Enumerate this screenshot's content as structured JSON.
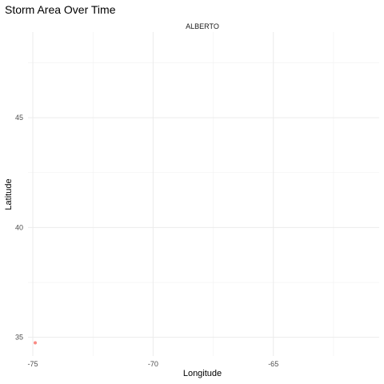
{
  "chart_data": {
    "type": "scatter",
    "title": "Storm Area Over Time",
    "facet_label": "ALBERTO",
    "xlabel": "Longitude",
    "ylabel": "Latitude",
    "xlim": [
      -75.2,
      -60.6
    ],
    "ylim": [
      34.15,
      48.9
    ],
    "x_ticks": [
      -75,
      -70,
      -65
    ],
    "x_tick_labels": [
      "-75",
      "-70",
      "-65"
    ],
    "y_ticks": [
      35,
      40,
      45
    ],
    "y_tick_labels": [
      "35",
      "40",
      "45"
    ],
    "x_minor": [
      -72.5,
      -67.5,
      -62.5
    ],
    "y_minor": [
      37.5,
      42.5,
      47.5
    ],
    "grid": true,
    "theme": "minimal",
    "points": [
      {
        "x": -74.9,
        "y": 34.75,
        "color": "#f8766d"
      }
    ]
  }
}
